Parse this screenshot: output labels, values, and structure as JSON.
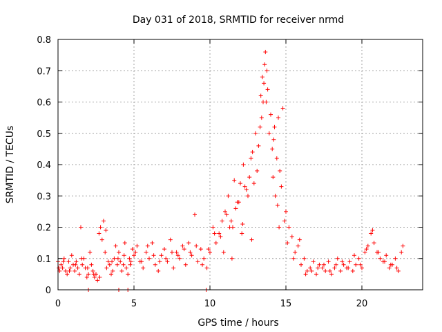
{
  "chart_data": {
    "type": "scatter",
    "title": "Day 031 of 2018, SRMTID for receiver nrmd",
    "xlabel": "GPS time / hours",
    "ylabel": "SRMTID / TECUs",
    "xlim": [
      0,
      24
    ],
    "ylim": [
      0,
      0.8
    ],
    "x_ticks": [
      0,
      5,
      10,
      15,
      20
    ],
    "x_tick_labels": [
      "0",
      "5",
      "10",
      "15",
      "20"
    ],
    "y_ticks": [
      0,
      0.1,
      0.2,
      0.3,
      0.4,
      0.5,
      0.6,
      0.7,
      0.8
    ],
    "y_tick_labels": [
      "0",
      "0.1",
      "0.2",
      "0.3",
      "0.4",
      "0.5",
      "0.6",
      "0.7",
      "0.8"
    ],
    "grid": true,
    "marker": "+",
    "series": [
      {
        "name": "SRMTID",
        "color": "#ff0000",
        "x": [
          0.0,
          0.1,
          0.2,
          0.3,
          0.4,
          0.5,
          0.6,
          0.7,
          0.8,
          0.9,
          1.0,
          1.1,
          1.2,
          1.3,
          1.4,
          1.5,
          1.6,
          1.7,
          1.8,
          1.9,
          2.0,
          2.1,
          2.2,
          2.3,
          2.4,
          2.5,
          2.6,
          2.7,
          2.8,
          2.9,
          3.0,
          3.1,
          3.2,
          3.3,
          3.4,
          3.5,
          3.6,
          3.7,
          3.8,
          3.9,
          4.0,
          4.1,
          4.2,
          4.3,
          4.4,
          4.5,
          4.6,
          4.7,
          4.8,
          4.9,
          5.0,
          5.2,
          5.4,
          5.6,
          5.8,
          6.0,
          6.2,
          6.4,
          6.6,
          6.8,
          7.0,
          7.2,
          7.4,
          7.6,
          7.8,
          8.0,
          8.2,
          8.4,
          8.6,
          8.8,
          9.0,
          9.2,
          9.4,
          9.6,
          9.8,
          10.0,
          10.2,
          10.4,
          10.6,
          10.8,
          11.0,
          11.2,
          11.4,
          11.6,
          11.8,
          12.0,
          12.2,
          12.4,
          12.6,
          12.8,
          13.0,
          13.2,
          13.4,
          13.5,
          13.6,
          13.8,
          14.0,
          14.2,
          14.4,
          14.6,
          14.8,
          15.0,
          15.2,
          15.4,
          15.6,
          15.8,
          16.0,
          16.2,
          16.4,
          16.6,
          16.8,
          17.0,
          17.2,
          17.4,
          17.6,
          17.8,
          18.0,
          18.2,
          18.4,
          18.6,
          18.8,
          19.0,
          19.2,
          19.4,
          19.6,
          19.8,
          20.0,
          20.2,
          20.4,
          20.6,
          20.8,
          21.0,
          21.2,
          21.4,
          21.6,
          21.8,
          22.0,
          22.2,
          22.4,
          22.6,
          0.05,
          0.35,
          0.75,
          1.15,
          1.55,
          1.95,
          2.35,
          2.75,
          3.15,
          3.55,
          3.95,
          4.35,
          4.75,
          5.1,
          5.5,
          5.9,
          6.3,
          6.7,
          7.1,
          7.5,
          7.9,
          8.3,
          8.7,
          9.1,
          9.5,
          9.9,
          10.3,
          10.7,
          11.1,
          11.5,
          11.9,
          12.3,
          12.7,
          13.1,
          13.3,
          13.55,
          13.7,
          13.9,
          14.1,
          14.3,
          14.5,
          14.7,
          14.9,
          15.1,
          15.5,
          15.9,
          16.3,
          16.7,
          17.1,
          17.5,
          17.9,
          18.3,
          18.7,
          19.1,
          19.5,
          19.9,
          20.3,
          20.7,
          21.1,
          21.5,
          21.9,
          22.3,
          22.7,
          11.3,
          11.7,
          12.1,
          12.5,
          12.9,
          13.35,
          13.45,
          13.65,
          13.75,
          14.15,
          14.25,
          14.45,
          14.55,
          10.9,
          11.45,
          12.15,
          12.75,
          2.0,
          4.0,
          4.6,
          9.75
        ],
        "y": [
          0.09,
          0.06,
          0.08,
          0.07,
          0.1,
          0.06,
          0.05,
          0.09,
          0.07,
          0.11,
          0.08,
          0.06,
          0.09,
          0.07,
          0.05,
          0.2,
          0.08,
          0.1,
          0.07,
          0.04,
          0.05,
          0.12,
          0.08,
          0.06,
          0.04,
          0.05,
          0.03,
          0.18,
          0.2,
          0.16,
          0.22,
          0.12,
          0.07,
          0.09,
          0.08,
          0.05,
          0.06,
          0.1,
          0.14,
          0.08,
          0.12,
          0.09,
          0.06,
          0.08,
          0.15,
          0.07,
          0.05,
          0.1,
          0.09,
          0.13,
          0.11,
          0.14,
          0.09,
          0.07,
          0.12,
          0.1,
          0.15,
          0.08,
          0.06,
          0.11,
          0.13,
          0.09,
          0.16,
          0.07,
          0.12,
          0.1,
          0.14,
          0.08,
          0.15,
          0.11,
          0.24,
          0.09,
          0.13,
          0.1,
          0.07,
          0.12,
          0.2,
          0.15,
          0.18,
          0.22,
          0.25,
          0.3,
          0.22,
          0.35,
          0.28,
          0.34,
          0.4,
          0.32,
          0.36,
          0.44,
          0.5,
          0.46,
          0.55,
          0.6,
          0.72,
          0.64,
          0.56,
          0.48,
          0.42,
          0.38,
          0.58,
          0.25,
          0.2,
          0.17,
          0.12,
          0.14,
          0.08,
          0.1,
          0.06,
          0.07,
          0.09,
          0.05,
          0.08,
          0.07,
          0.06,
          0.09,
          0.05,
          0.07,
          0.1,
          0.06,
          0.08,
          0.07,
          0.09,
          0.06,
          0.08,
          0.1,
          0.07,
          0.12,
          0.14,
          0.18,
          0.15,
          0.12,
          0.1,
          0.09,
          0.11,
          0.07,
          0.08,
          0.1,
          0.06,
          0.12,
          0.07,
          0.09,
          0.06,
          0.08,
          0.1,
          0.07,
          0.05,
          0.04,
          0.19,
          0.09,
          0.1,
          0.11,
          0.08,
          0.12,
          0.09,
          0.14,
          0.11,
          0.09,
          0.1,
          0.12,
          0.11,
          0.13,
          0.12,
          0.14,
          0.08,
          0.13,
          0.18,
          0.17,
          0.24,
          0.2,
          0.28,
          0.33,
          0.42,
          0.38,
          0.52,
          0.66,
          0.6,
          0.5,
          0.45,
          0.3,
          0.55,
          0.33,
          0.22,
          0.15,
          0.1,
          0.16,
          0.05,
          0.06,
          0.07,
          0.08,
          0.06,
          0.08,
          0.09,
          0.07,
          0.11,
          0.08,
          0.13,
          0.19,
          0.12,
          0.09,
          0.08,
          0.07,
          0.14,
          0.2,
          0.26,
          0.18,
          0.3,
          0.34,
          0.62,
          0.68,
          0.76,
          0.7,
          0.36,
          0.52,
          0.27,
          0.2,
          0.12,
          0.1,
          0.21,
          0.16,
          0.0,
          0.0,
          0.0,
          0.0
        ]
      }
    ]
  }
}
